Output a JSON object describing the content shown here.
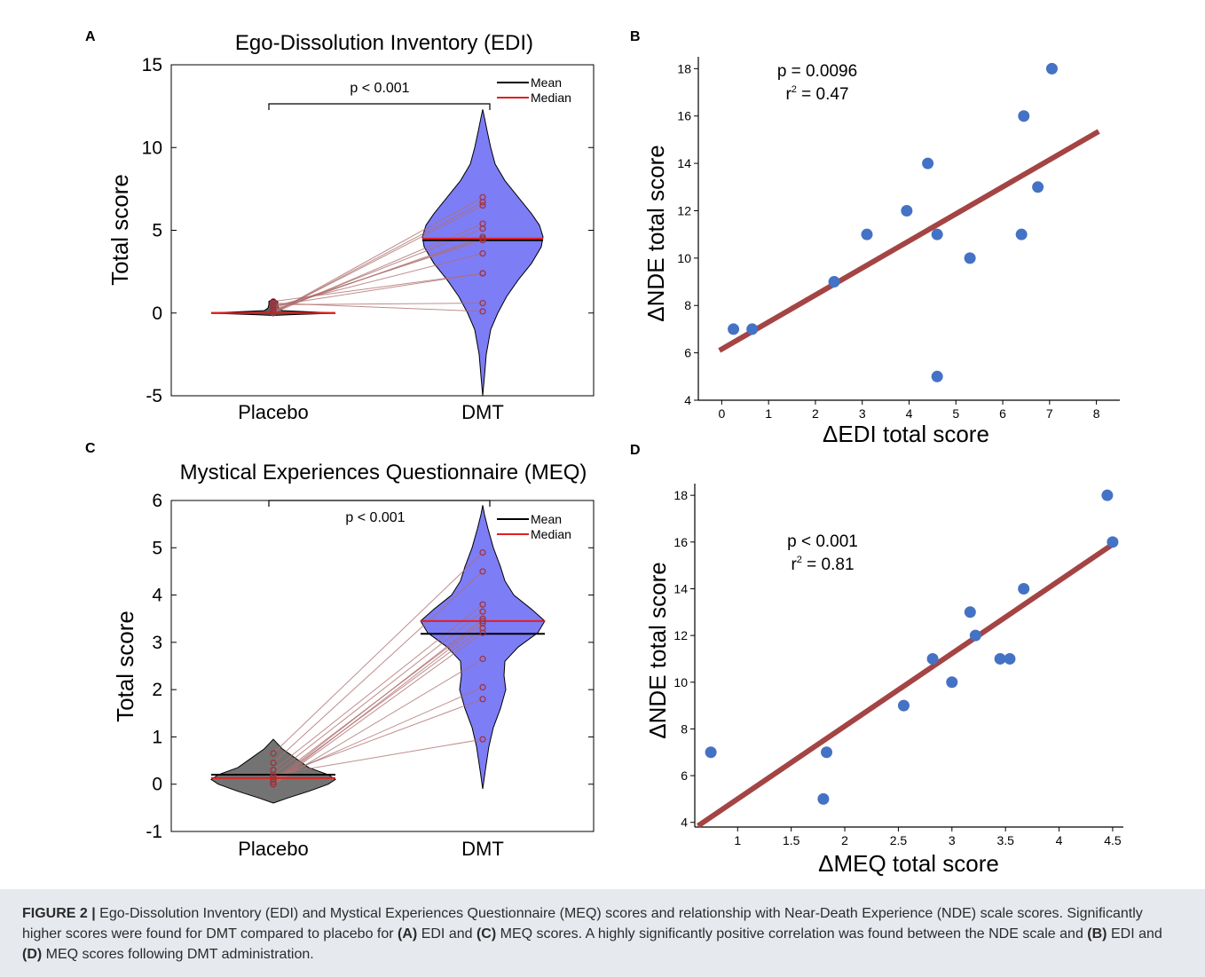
{
  "chart_data": [
    {
      "id": "A",
      "type": "violin",
      "title": "Ego-Dissolution Inventory (EDI)",
      "ylabel": "Total score",
      "ylim": [
        -5,
        15
      ],
      "yticks": [
        "-5",
        "0",
        "5",
        "10",
        "15"
      ],
      "categories": [
        "Placebo",
        "DMT"
      ],
      "legend": [
        "Mean",
        "Median"
      ],
      "significance": "p < 0.001",
      "series": [
        {
          "name": "Placebo",
          "mean": 0.0,
          "median": 0.0,
          "color": "#505050",
          "points": [
            0.0,
            0.0,
            0.0,
            0.0,
            0.1,
            0.15,
            0.2,
            0.3,
            0.4,
            0.45,
            0.5,
            0.6,
            0.7
          ]
        },
        {
          "name": "DMT",
          "mean": 4.4,
          "median": 4.5,
          "color": "#6f6ff2",
          "points": [
            7.0,
            6.7,
            6.5,
            5.4,
            5.1,
            4.6,
            4.5,
            4.4,
            3.6,
            2.4,
            0.6,
            0.1,
            2.4
          ]
        }
      ]
    },
    {
      "id": "B",
      "type": "scatter",
      "xlabel": "ΔEDI total score",
      "ylabel": "ΔNDE total score",
      "xlim": [
        -0.5,
        8.5
      ],
      "ylim": [
        4,
        18.5
      ],
      "xticks": [
        "0",
        "1",
        "2",
        "3",
        "4",
        "5",
        "6",
        "7",
        "8"
      ],
      "yticks": [
        "4",
        "6",
        "8",
        "10",
        "12",
        "14",
        "16",
        "18"
      ],
      "stat_p": "p  = 0.0096",
      "stat_r2_prefix": "r",
      "stat_r2_sup": "2",
      "stat_r2_value": " = 0.47",
      "points": [
        [
          0.25,
          7
        ],
        [
          0.65,
          7
        ],
        [
          2.4,
          9
        ],
        [
          3.1,
          11
        ],
        [
          3.95,
          12
        ],
        [
          4.4,
          14
        ],
        [
          4.6,
          11
        ],
        [
          4.6,
          5
        ],
        [
          5.3,
          10
        ],
        [
          6.4,
          11
        ],
        [
          6.45,
          16
        ],
        [
          6.75,
          13
        ],
        [
          7.05,
          18
        ]
      ],
      "fit": [
        [
          -0.05,
          6.1
        ],
        [
          8.05,
          15.35
        ]
      ]
    },
    {
      "id": "C",
      "type": "violin",
      "title": "Mystical Experiences Questionnaire (MEQ)",
      "ylabel": "Total score",
      "ylim": [
        -1,
        6
      ],
      "yticks": [
        "-1",
        "0",
        "1",
        "2",
        "3",
        "4",
        "5",
        "6"
      ],
      "categories": [
        "Placebo",
        "DMT"
      ],
      "legend": [
        "Mean",
        "Median"
      ],
      "significance": "p < 0.001",
      "series": [
        {
          "name": "Placebo",
          "mean": 0.2,
          "median": 0.13,
          "color": "#6b6b6b",
          "points": [
            0.65,
            0.45,
            0.3,
            0.2,
            0.1,
            0.05,
            0.0,
            0.0,
            0.1,
            0.15,
            0.2,
            0.05,
            0.0
          ]
        },
        {
          "name": "DMT",
          "mean": 3.18,
          "median": 3.45,
          "color": "#6f6ff2",
          "points": [
            4.9,
            4.5,
            3.8,
            3.65,
            3.45,
            3.3,
            3.2,
            2.65,
            2.05,
            1.8,
            0.95,
            3.5,
            3.4
          ]
        }
      ]
    },
    {
      "id": "D",
      "type": "scatter",
      "xlabel": "ΔMEQ total score",
      "ylabel": "ΔNDE total score",
      "xlim": [
        0.6,
        4.6
      ],
      "ylim": [
        3.8,
        18.5
      ],
      "xticks": [
        "1",
        "1.5",
        "2",
        "2.5",
        "3",
        "3.5",
        "4",
        "4.5"
      ],
      "yticks": [
        "4",
        "6",
        "8",
        "10",
        "12",
        "14",
        "16",
        "18"
      ],
      "stat_p": "p < 0.001",
      "stat_r2_prefix": "r",
      "stat_r2_sup": "2",
      "stat_r2_value": " = 0.81",
      "points": [
        [
          0.75,
          7
        ],
        [
          1.8,
          5
        ],
        [
          1.83,
          7
        ],
        [
          2.55,
          9
        ],
        [
          2.82,
          11
        ],
        [
          3.0,
          10
        ],
        [
          3.17,
          13
        ],
        [
          3.22,
          12
        ],
        [
          3.45,
          11
        ],
        [
          3.54,
          11
        ],
        [
          3.67,
          14
        ],
        [
          4.45,
          18
        ],
        [
          4.5,
          16
        ]
      ],
      "fit": [
        [
          0.63,
          3.85
        ],
        [
          4.5,
          15.9
        ]
      ]
    }
  ],
  "panel_letters": [
    "A",
    "B",
    "C",
    "D"
  ],
  "caption": {
    "label": "FIGURE 2 |",
    "t1": " Ego-Dissolution Inventory (EDI) and Mystical Experiences Questionnaire (MEQ) scores and relationship with Near-Death Experience (NDE) scale scores. Significantly higher scores were found for DMT compared to placebo for ",
    "b1": "(A)",
    "t2": " EDI and ",
    "b2": "(C)",
    "t3": " MEQ scores. A highly significantly positive correlation was found between the NDE scale and ",
    "b3": "(B)",
    "t4": " EDI and ",
    "b4": "(D)",
    "t5": " MEQ scores following DMT administration."
  },
  "colors": {
    "violin_dmt": "#7272f5",
    "violin_placebo": "#6b6b6b",
    "median": "#e11f1f",
    "mean": "#000000",
    "paired_line": "#b07070",
    "scatter_point": "#4472c4",
    "fit_line": "#a44444",
    "caption_bg": "#e6e9ee"
  }
}
